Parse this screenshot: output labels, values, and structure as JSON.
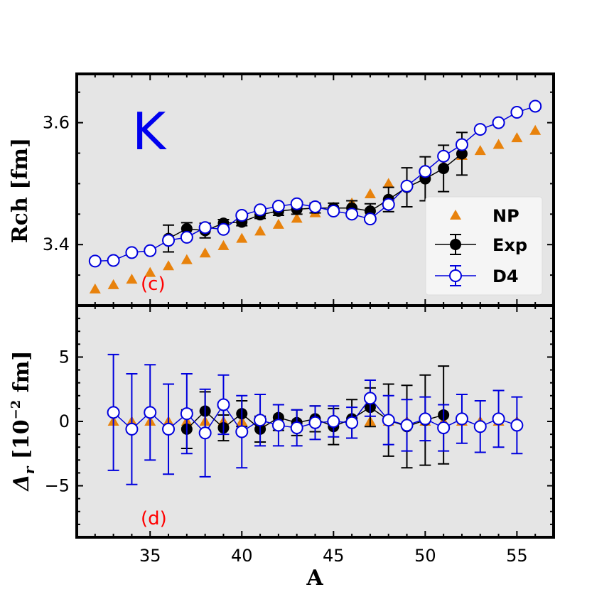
{
  "colors": {
    "panel_bg": "#e5e5e5",
    "np": "#e8820c",
    "exp": "#000000",
    "d4": "#0000dd",
    "panel_label": "#ff0000",
    "element_label": "#0000ee"
  },
  "chart_data": [
    {
      "type": "scatter",
      "panel": "top",
      "panel_label": "(c)",
      "element_label": "K",
      "ylabel": "Rch [fm]",
      "xlim": [
        31,
        57
      ],
      "ylim": [
        3.3,
        3.68
      ],
      "xticks": [
        35,
        40,
        45,
        50,
        55
      ],
      "yticks": [
        3.4,
        3.6
      ],
      "grid": false,
      "legend_position": "lower right",
      "series": [
        {
          "name": "NP",
          "marker": "triangle",
          "x": [
            32,
            33,
            34,
            35,
            36,
            37,
            38,
            39,
            40,
            41,
            42,
            43,
            44,
            45,
            46,
            47,
            48,
            49,
            50,
            51,
            52,
            53,
            54,
            55,
            56
          ],
          "y": [
            3.327,
            3.334,
            3.343,
            3.354,
            3.365,
            3.375,
            3.386,
            3.398,
            3.41,
            3.422,
            3.433,
            3.443,
            3.452,
            3.461,
            3.468,
            3.483,
            3.5,
            3.497,
            3.513,
            3.53,
            3.546,
            3.554,
            3.564,
            3.575,
            3.587
          ]
        },
        {
          "name": "Exp",
          "marker": "filled-circle",
          "x": [
            36,
            37,
            38,
            39,
            40,
            41,
            42,
            43,
            44,
            45,
            46,
            47,
            48,
            49,
            50,
            51,
            52
          ],
          "y": [
            3.41,
            3.426,
            3.423,
            3.435,
            3.437,
            3.449,
            3.455,
            3.458,
            3.46,
            3.46,
            3.46,
            3.455,
            3.474,
            3.494,
            3.508,
            3.525,
            3.549
          ],
          "yerr": [
            0.022,
            0.01,
            0.012,
            0.006,
            0.006,
            0.006,
            0.007,
            0.008,
            0.008,
            0.008,
            0.012,
            0.012,
            0.02,
            0.032,
            0.036,
            0.038,
            0.035
          ]
        },
        {
          "name": "D4",
          "marker": "open-circle",
          "x": [
            32,
            33,
            34,
            35,
            36,
            37,
            38,
            39,
            40,
            41,
            42,
            43,
            44,
            45,
            46,
            47,
            48,
            49,
            50,
            51,
            52,
            53,
            54,
            55,
            56
          ],
          "y": [
            3.373,
            3.374,
            3.387,
            3.39,
            3.407,
            3.412,
            3.428,
            3.425,
            3.448,
            3.457,
            3.463,
            3.467,
            3.462,
            3.455,
            3.45,
            3.442,
            3.466,
            3.496,
            3.52,
            3.545,
            3.564,
            3.589,
            3.6,
            3.617,
            3.627
          ]
        }
      ]
    },
    {
      "type": "scatter",
      "panel": "bottom",
      "panel_label": "(d)",
      "xlabel": "A",
      "ylabel": "Δ_r [10^−2 fm]",
      "ylabel_parts": {
        "delta": "Δ",
        "sub": "r",
        "open": " [10",
        "sup": "−2",
        "close": " fm]"
      },
      "xlim": [
        31,
        57
      ],
      "ylim": [
        -9,
        9
      ],
      "xticks": [
        35,
        40,
        45,
        50,
        55
      ],
      "yticks": [
        -5,
        0,
        5
      ],
      "ytick_labels": [
        "−5",
        "0",
        "5"
      ],
      "grid": false,
      "series": [
        {
          "name": "NP",
          "marker": "triangle",
          "x": [
            33,
            34,
            35,
            36,
            37,
            38,
            39,
            40,
            41,
            42,
            43,
            44,
            45,
            46,
            47,
            48,
            49,
            50,
            51,
            52,
            53,
            54,
            55
          ],
          "y": [
            0,
            0,
            0,
            0,
            0,
            0,
            0,
            0,
            0,
            0,
            0,
            0,
            0,
            0,
            0,
            0,
            0,
            0,
            0,
            0,
            0,
            0,
            0
          ]
        },
        {
          "name": "Exp",
          "marker": "filled-circle",
          "x": [
            37,
            38,
            39,
            40,
            41,
            42,
            43,
            44,
            45,
            46,
            47,
            48,
            49,
            50,
            51
          ],
          "y": [
            -0.6,
            0.8,
            -0.5,
            0.6,
            -0.6,
            0.3,
            -0.1,
            0.2,
            -0.4,
            0.2,
            1.1,
            0.1,
            -0.4,
            0.1,
            0.5
          ],
          "yerr": [
            1.5,
            1.5,
            1.0,
            1.0,
            1.0,
            1.0,
            1.0,
            1.0,
            1.4,
            1.5,
            1.5,
            2.8,
            3.2,
            3.5,
            3.8
          ]
        },
        {
          "name": "D4",
          "marker": "open-circle",
          "x": [
            33,
            34,
            35,
            36,
            37,
            38,
            39,
            40,
            41,
            42,
            43,
            44,
            45,
            46,
            47,
            48,
            49,
            50,
            51,
            52,
            53,
            54,
            55
          ],
          "y": [
            0.7,
            -0.6,
            0.7,
            -0.6,
            0.6,
            -0.9,
            1.3,
            -0.8,
            0.1,
            -0.3,
            -0.5,
            -0.1,
            0.0,
            -0.1,
            1.8,
            0.1,
            -0.3,
            0.2,
            -0.5,
            0.2,
            -0.4,
            0.2,
            -0.3
          ],
          "yerr": [
            4.5,
            4.3,
            3.7,
            3.5,
            3.1,
            3.4,
            2.3,
            2.8,
            2.0,
            1.6,
            1.4,
            1.3,
            1.2,
            1.2,
            1.4,
            1.9,
            2.0,
            1.7,
            1.8,
            1.9,
            2.0,
            2.2,
            2.2
          ]
        }
      ]
    }
  ]
}
